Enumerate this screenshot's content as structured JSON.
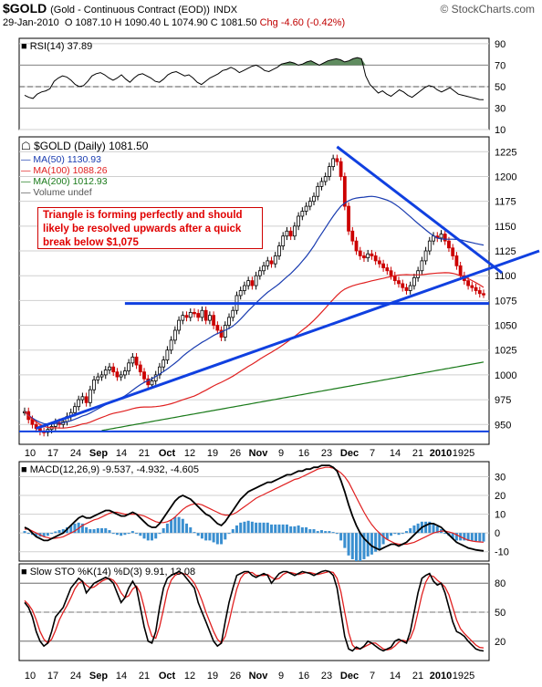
{
  "header": {
    "symbol": "$GOLD",
    "name": "(Gold - Continuous Contract (EOD))",
    "exchange": "INDX",
    "brand": "© StockCharts.com",
    "date": "29-Jan-2010",
    "open": "O 1087.10",
    "high": "H 1090.40",
    "low": "L 1074.90",
    "close": "C 1081.50",
    "change": "Chg -4.60 (-0.42%)"
  },
  "annotation": {
    "text": "Triangle is forming perfectly and should likely be resolved upwards after a quick break below $1,075"
  },
  "colors": {
    "up": "#000000",
    "down": "#cc0000",
    "ma50": "#1a3cb0",
    "ma100": "#e02020",
    "ma200": "#1a7a1a",
    "trend": "#1040e0",
    "rsi_fill": "#4f7f4f",
    "macd_hist": "#3a8fd0"
  },
  "chart_data": [
    {
      "panel": "rsi",
      "type": "line",
      "label": "RSI(14) 37.89",
      "ylim": [
        10,
        95
      ],
      "yticks": [
        10,
        30,
        50,
        70,
        90
      ],
      "reference_levels": [
        70,
        30
      ],
      "values": [
        42,
        40,
        39,
        43,
        45,
        46,
        48,
        55,
        58,
        60,
        59,
        56,
        52,
        50,
        51,
        55,
        60,
        62,
        63,
        61,
        58,
        56,
        58,
        61,
        57,
        54,
        58,
        61,
        62,
        60,
        58,
        55,
        54,
        57,
        61,
        63,
        64,
        62,
        60,
        61,
        58,
        54,
        52,
        55,
        58,
        60,
        62,
        65,
        66,
        68,
        66,
        63,
        65,
        67,
        69,
        70,
        68,
        65,
        64,
        66,
        68,
        71,
        72,
        73,
        72,
        70,
        71,
        73,
        74,
        72,
        70,
        72,
        74,
        75,
        76,
        75,
        73,
        74,
        76,
        77,
        76,
        60,
        52,
        48,
        44,
        46,
        43,
        41,
        44,
        47,
        45,
        42,
        40,
        43,
        46,
        49,
        51,
        50,
        47,
        45,
        47,
        49,
        46,
        43,
        42,
        41,
        40,
        39,
        38,
        37.89
      ]
    },
    {
      "panel": "price",
      "type": "candlestick",
      "title": "$GOLD (Daily) 1081.50",
      "legend": [
        {
          "name": "MA(50) 1130.93",
          "color": "#1a3cb0"
        },
        {
          "name": "MA(100) 1088.26",
          "color": "#e02020"
        },
        {
          "name": "MA(200) 1012.93",
          "color": "#1a7a1a"
        },
        {
          "name": "Volume undef",
          "color": "#555555"
        }
      ],
      "ylim": [
        930,
        1240
      ],
      "yticks": [
        950,
        975,
        1000,
        1025,
        1050,
        1075,
        1100,
        1125,
        1150,
        1175,
        1200,
        1225
      ],
      "xtick_labels": [
        "10",
        "17",
        "24",
        "Sep",
        "14",
        "21",
        "Oct",
        "12",
        "19",
        "26",
        "Nov",
        "9",
        "16",
        "23",
        "Dec",
        "7",
        "14",
        "21",
        "2010",
        "1925"
      ],
      "close": [
        963,
        955,
        950,
        946,
        943,
        942,
        945,
        948,
        952,
        950,
        953,
        958,
        962,
        968,
        975,
        978,
        972,
        985,
        995,
        998,
        1000,
        1005,
        1008,
        1003,
        998,
        1000,
        1004,
        1012,
        1018,
        1010,
        1003,
        996,
        990,
        994,
        1000,
        1008,
        1015,
        1025,
        1035,
        1045,
        1055,
        1060,
        1058,
        1063,
        1062,
        1058,
        1065,
        1055,
        1060,
        1050,
        1045,
        1038,
        1050,
        1058,
        1065,
        1080,
        1085,
        1090,
        1095,
        1090,
        1100,
        1105,
        1110,
        1115,
        1112,
        1120,
        1130,
        1140,
        1145,
        1140,
        1150,
        1160,
        1165,
        1170,
        1175,
        1180,
        1190,
        1195,
        1200,
        1210,
        1218,
        1215,
        1200,
        1170,
        1145,
        1135,
        1125,
        1120,
        1118,
        1122,
        1120,
        1115,
        1112,
        1108,
        1105,
        1100,
        1095,
        1092,
        1088,
        1085,
        1090,
        1098,
        1105,
        1115,
        1125,
        1135,
        1140,
        1138,
        1142,
        1135,
        1128,
        1120,
        1110,
        1100,
        1095,
        1090,
        1088,
        1085,
        1082,
        1081.5
      ],
      "ma50_end": 1130.93,
      "ma100_end": 1088.26,
      "ma200_end": 1012.93,
      "horizontal_support": 1072,
      "upper_trendline": {
        "from": 1230,
        "to": 1103
      },
      "lower_trendline": {
        "from": 946,
        "to": 1107
      }
    },
    {
      "panel": "macd",
      "type": "line+histogram",
      "label": "MACD(12,26,9) -9.537, -4.932, -4.605",
      "ylim": [
        -15,
        38
      ],
      "yticks": [
        -10,
        0,
        10,
        20,
        30
      ],
      "macd": [
        3,
        2,
        0,
        -2,
        -3,
        -4,
        -4,
        -3,
        -2,
        -1,
        0,
        2,
        4,
        6,
        8,
        9,
        8,
        8,
        9,
        10,
        11,
        12,
        12,
        11,
        10,
        9,
        9,
        10,
        11,
        10,
        8,
        6,
        4,
        3,
        3,
        5,
        8,
        11,
        14,
        17,
        19,
        20,
        19,
        18,
        16,
        14,
        12,
        10,
        9,
        7,
        5,
        4,
        6,
        9,
        12,
        15,
        18,
        20,
        22,
        23,
        24,
        25,
        26,
        27,
        27,
        28,
        29,
        30,
        31,
        31,
        32,
        33,
        33,
        34,
        34,
        35,
        35,
        36,
        36,
        36,
        35,
        33,
        28,
        22,
        15,
        9,
        4,
        0,
        -3,
        -5,
        -7,
        -8,
        -9,
        -8,
        -7,
        -6,
        -6,
        -7,
        -6,
        -5,
        -3,
        -1,
        1,
        3,
        4,
        5,
        5,
        4,
        3,
        1,
        -1,
        -3,
        -5,
        -6,
        -7,
        -8,
        -8.5,
        -9,
        -9.3,
        -9.537
      ],
      "signal": [
        2,
        2,
        1,
        0,
        -1,
        -2,
        -2.5,
        -3,
        -2.8,
        -2.5,
        -2,
        -1,
        0,
        1,
        2.5,
        4,
        5,
        6,
        7,
        7.5,
        8.5,
        9.5,
        10.5,
        11,
        11,
        10.5,
        10,
        10,
        10,
        10,
        9.5,
        9,
        8,
        7,
        6,
        5.5,
        5.5,
        6,
        7,
        8.5,
        10.5,
        12.5,
        14,
        15,
        15.5,
        15.5,
        15,
        14,
        13,
        12,
        11,
        10,
        9.5,
        9.5,
        10,
        11,
        12.5,
        14,
        15.5,
        17,
        18.5,
        19.5,
        20.5,
        21.5,
        22.5,
        23.5,
        24.5,
        25.5,
        26.5,
        27.5,
        28.5,
        29,
        30,
        31,
        32,
        33,
        34,
        34.5,
        35,
        35,
        34.5,
        33.5,
        32,
        30,
        27,
        23,
        19,
        15,
        11,
        7.5,
        4.5,
        2,
        0,
        -2,
        -3.5,
        -4.5,
        -5.5,
        -6,
        -6,
        -6,
        -5.5,
        -5,
        -4,
        -3,
        -2,
        -1,
        0,
        0.5,
        1,
        1,
        0.5,
        0,
        -1,
        -2,
        -3,
        -3.8,
        -4.3,
        -4.6,
        -4.8,
        -4.932
      ],
      "histogram_last": -4.605
    },
    {
      "panel": "stochastic",
      "type": "line",
      "label": "Slow STO %K(14) %D(3) 9.91, 13.08",
      "ylim": [
        0,
        100
      ],
      "yticks": [
        20,
        50,
        80
      ],
      "reference_levels": [
        80,
        20
      ],
      "k": [
        60,
        55,
        45,
        30,
        20,
        15,
        18,
        30,
        45,
        50,
        55,
        65,
        75,
        80,
        85,
        82,
        70,
        75,
        80,
        82,
        84,
        86,
        84,
        80,
        70,
        60,
        65,
        75,
        82,
        75,
        55,
        35,
        20,
        18,
        30,
        55,
        75,
        85,
        88,
        90,
        92,
        90,
        85,
        80,
        75,
        60,
        50,
        40,
        30,
        20,
        15,
        18,
        40,
        60,
        75,
        88,
        90,
        92,
        92,
        88,
        86,
        88,
        90,
        88,
        80,
        85,
        90,
        92,
        92,
        90,
        88,
        90,
        92,
        91,
        90,
        88,
        90,
        92,
        93,
        92,
        88,
        75,
        50,
        25,
        12,
        10,
        14,
        12,
        15,
        20,
        18,
        15,
        12,
        10,
        12,
        14,
        20,
        22,
        20,
        18,
        30,
        50,
        70,
        85,
        88,
        90,
        82,
        78,
        80,
        70,
        55,
        40,
        30,
        28,
        25,
        20,
        16,
        12,
        10.5,
        9.91
      ],
      "d": [
        62,
        58,
        52,
        42,
        30,
        22,
        18,
        22,
        31,
        42,
        50,
        57,
        65,
        74,
        80,
        82,
        78,
        75,
        76,
        79,
        82,
        84,
        85,
        83,
        78,
        70,
        65,
        67,
        74,
        77,
        70,
        55,
        37,
        25,
        23,
        35,
        53,
        72,
        83,
        88,
        90,
        90,
        89,
        85,
        80,
        72,
        62,
        50,
        40,
        30,
        22,
        18,
        25,
        40,
        58,
        74,
        85,
        90,
        91,
        91,
        88,
        88,
        88,
        89,
        86,
        84,
        85,
        89,
        91,
        91,
        90,
        89,
        90,
        91,
        91,
        90,
        89,
        90,
        91,
        92,
        91,
        85,
        71,
        50,
        29,
        16,
        12,
        12,
        14,
        16,
        18,
        18,
        15,
        12,
        11,
        12,
        15,
        19,
        21,
        20,
        23,
        33,
        50,
        68,
        81,
        88,
        87,
        83,
        80,
        76,
        68,
        55,
        42,
        33,
        28,
        24,
        20,
        16,
        13.5,
        13.08
      ]
    }
  ],
  "bottom_axis_labels": [
    "10",
    "17",
    "24",
    "Sep",
    "14",
    "21",
    "Oct",
    "12",
    "19",
    "26",
    "Nov",
    "9",
    "16",
    "23",
    "Dec",
    "7",
    "14",
    "21",
    "2010",
    "1925"
  ]
}
